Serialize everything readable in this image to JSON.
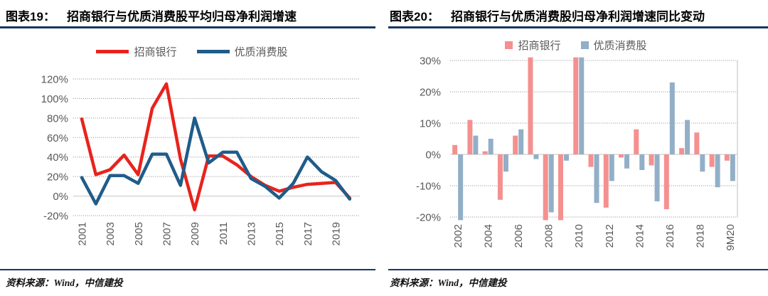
{
  "colors": {
    "title_rule": "#17375e",
    "grid": "#8c8c8c",
    "axis_line": "#d9d9d9",
    "plot_border": "#c9c9c9",
    "tick_text": "#595959",
    "red": "#e8231c",
    "navy": "#1f5c8a",
    "salmon": "#f4908f",
    "bluegray": "#92afc7"
  },
  "panels": [
    {
      "title_label": "图表19：",
      "title": "招商银行与优质消费股平均归母净利润增速",
      "source": "资料来源：Wind，中信建投"
    },
    {
      "title_label": "图表20：",
      "title": "招商银行与优质消费股归母净利润增速同比变动",
      "source": "资料来源：Wind，中信建投"
    }
  ],
  "chart_data": [
    {
      "type": "line",
      "title": "招商银行与优质消费股平均归母净利润增速",
      "x": [
        2001,
        2002,
        2003,
        2004,
        2005,
        2006,
        2007,
        2008,
        2009,
        2010,
        2011,
        2012,
        2013,
        2014,
        2015,
        2016,
        2017,
        2018,
        2019,
        2020
      ],
      "x_tick_labels": [
        "2001",
        "2003",
        "2005",
        "2007",
        "2009",
        "2011",
        "2013",
        "2015",
        "2017",
        "2019"
      ],
      "ylim": [
        -20,
        120
      ],
      "ytick_step": 20,
      "ytick_labels": [
        "120%",
        "100%",
        "80%",
        "60%",
        "40%",
        "20%",
        "0%",
        "-20%"
      ],
      "grid": "horizontal-dotted",
      "legend_position": "top",
      "series": [
        {
          "name": "招商银行",
          "color": "#e8231c",
          "values": [
            79,
            22,
            27,
            42,
            22,
            90,
            115,
            38,
            -14,
            41,
            41,
            32,
            20,
            11,
            5,
            9,
            12,
            13,
            14,
            -2
          ]
        },
        {
          "name": "优质消费股",
          "color": "#1f5c8a",
          "values": [
            19,
            -8,
            21,
            21,
            13,
            43,
            43,
            11,
            80,
            34,
            45,
            45,
            18,
            10,
            -2,
            13,
            40,
            25,
            16,
            -3
          ]
        }
      ]
    },
    {
      "type": "bar",
      "title": "招商银行与优质消费股归母净利润增速同比变动",
      "categories": [
        "2002",
        "2003",
        "2004",
        "2005",
        "2006",
        "2007",
        "2008",
        "2009",
        "2010",
        "2011",
        "2012",
        "2013",
        "2014",
        "2015",
        "2016",
        "2017",
        "2018",
        "2019",
        "9M20"
      ],
      "x_tick_labels": [
        "2002",
        "2004",
        "2006",
        "2008",
        "2010",
        "2012",
        "2014",
        "2016",
        "2018",
        "9M20"
      ],
      "ylim": [
        -20,
        30
      ],
      "ytick_step": 10,
      "clip": [
        -21,
        31
      ],
      "ytick_labels": [
        "30%",
        "20%",
        "10%",
        "0%",
        "-10%",
        "-20%"
      ],
      "grid": "horizontal-dotted",
      "legend_position": "top",
      "series": [
        {
          "name": "招商银行",
          "color": "#f4908f",
          "values": [
            3,
            11,
            1,
            -14.5,
            6,
            31,
            -21,
            -21,
            31,
            -4,
            -17,
            -1,
            8,
            -3.5,
            -17.5,
            2,
            7,
            -4,
            -2
          ]
        },
        {
          "name": "优质消费股",
          "color": "#92afc7",
          "values": [
            -21,
            6,
            5,
            -5.5,
            8,
            -1.5,
            -18.5,
            -2,
            31,
            -15.5,
            -8.5,
            -4.5,
            -5,
            -15,
            23,
            11,
            -5.5,
            -10.5,
            -8.5
          ]
        }
      ]
    }
  ]
}
